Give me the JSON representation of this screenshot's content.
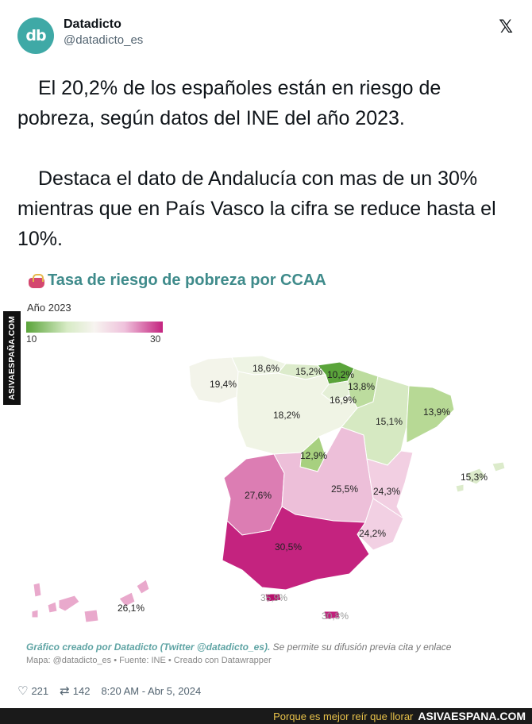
{
  "header": {
    "avatar_text": "db",
    "name": "Datadicto",
    "handle": "@datadicto_es",
    "platform_icon": "x-logo-icon",
    "platform_glyph": "𝕏"
  },
  "tweet": {
    "paragraph_1": "El 20,2% de los españoles están en riesgo de pobreza, según datos del INE del año 2023.",
    "paragraph_2": "Destaca el dato de Andalucía con mas de un 30% mientras que en País Vasco la cifra se reduce hasta el 10%."
  },
  "chart": {
    "title_icon": "purse-icon",
    "title": "Tasa de riesgo de pobreza por CCAA",
    "legend_title": "Año 2023",
    "legend_min": "10",
    "legend_max": "30",
    "credit_bold": "Gráfico creado por Datadicto (Twitter @datadicto_es).",
    "credit_rest": " Se permite su difusión previa cita y enlace",
    "source": "Mapa: @datadicto_es • Fuente: INE • Creado con Datawrapper"
  },
  "chart_data": {
    "type": "choropleth",
    "title": "Tasa de riesgo de pobreza por CCAA",
    "legend": "Año 2023",
    "scale": [
      10,
      30
    ],
    "regions": [
      {
        "label": "18,6%",
        "value": 18.6,
        "color": "#eef4e4"
      },
      {
        "label": "15,2%",
        "value": 15.2,
        "color": "#dcebcb"
      },
      {
        "label": "10,2%",
        "value": 10.2,
        "color": "#5aa43a"
      },
      {
        "label": "13,8%",
        "value": 13.8,
        "color": "#bcdc9e"
      },
      {
        "label": "19,4%",
        "value": 19.4,
        "color": "#f3f4ea"
      },
      {
        "label": "16,9%",
        "value": 16.9,
        "color": "#e4efd6"
      },
      {
        "label": "13,9%",
        "value": 13.9,
        "color": "#b7d995"
      },
      {
        "label": "18,2%",
        "value": 18.2,
        "color": "#f0f4e5"
      },
      {
        "label": "15,1%",
        "value": 15.1,
        "color": "#d6e9c2"
      },
      {
        "label": "12,9%",
        "value": 12.9,
        "color": "#a7d07f"
      },
      {
        "label": "15,3%",
        "value": 15.3,
        "color": "#dcebcb"
      },
      {
        "label": "27,6%",
        "value": 27.6,
        "color": "#dc7db3"
      },
      {
        "label": "25,5%",
        "value": 25.5,
        "color": "#edbfd9"
      },
      {
        "label": "24,3%",
        "value": 24.3,
        "color": "#f2cfe2"
      },
      {
        "label": "24,2%",
        "value": 24.2,
        "color": "#f2d0e3"
      },
      {
        "label": "30,5%",
        "value": 30.5,
        "color": "#c4237f"
      },
      {
        "label": "26,1%",
        "value": 26.1,
        "color": "#e9a9cc"
      },
      {
        "label": "35,9%",
        "value": 35.9,
        "color": "#b8106d"
      },
      {
        "label": "30,8%",
        "value": 30.8,
        "color": "#c21f7c"
      }
    ]
  },
  "stats": {
    "likes": "221",
    "retweets": "142",
    "timestamp": "8:20 AM - Abr 5, 2024"
  },
  "watermark": {
    "side_text": "ASIVAESPAÑA.COM",
    "footer_slogan": "Porque es mejor reír que llorar",
    "footer_site": "ASIVAESPANA.COM"
  }
}
